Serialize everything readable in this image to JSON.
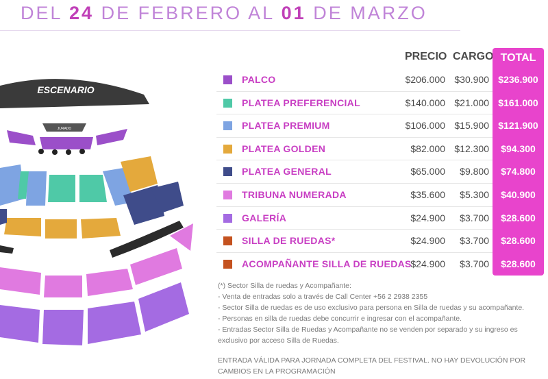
{
  "header": {
    "prefix": "DEL ",
    "day_start": "24",
    "middle": " DE FEBRERO AL ",
    "day_end": "01",
    "suffix": " DE MARZO"
  },
  "map": {
    "stage_label": "ESCENARIO",
    "jurado_label": "JURADO"
  },
  "table": {
    "col_precio": "PRECIO",
    "col_cargo": "CARGO",
    "col_total": "TOTAL",
    "rows": [
      {
        "zone": "PALCO",
        "color": "#9b4fc9",
        "precio": "$206.000",
        "cargo": "$30.900",
        "total": "$236.900"
      },
      {
        "zone": "PLATEA PREFERENCIAL",
        "color": "#4fc9a7",
        "precio": "$140.000",
        "cargo": "$21.000",
        "total": "$161.000"
      },
      {
        "zone": "PLATEA PREMIUM",
        "color": "#7ea4e2",
        "precio": "$106.000",
        "cargo": "$15.900",
        "total": "$121.900"
      },
      {
        "zone": "PLATEA GOLDEN",
        "color": "#e4a93c",
        "precio": "$82.000",
        "cargo": "$12.300",
        "total": "$94.300"
      },
      {
        "zone": "PLATEA GENERAL",
        "color": "#3f4c8a",
        "precio": "$65.000",
        "cargo": "$9.800",
        "total": "$74.800"
      },
      {
        "zone": "TRIBUNA NUMERADA",
        "color": "#e07ae0",
        "precio": "$35.600",
        "cargo": "$5.300",
        "total": "$40.900"
      },
      {
        "zone": "GALERÍA",
        "color": "#a46be2",
        "precio": "$24.900",
        "cargo": "$3.700",
        "total": "$28.600"
      },
      {
        "zone": "SILLA DE RUEDAS*",
        "color": "#c4521f",
        "precio": "$24.900",
        "cargo": "$3.700",
        "total": "$28.600"
      },
      {
        "zone": "ACOMPAÑANTE SILLA DE RUEDAS",
        "color": "#c4521f",
        "precio": "$24.900",
        "cargo": "$3.700",
        "total": "$28.600"
      }
    ]
  },
  "notes": [
    "(*) Sector Silla de ruedas y Acompañante:",
    "- Venta de entradas solo a través de Call Center +56 2 2938 2355",
    "- Sector Silla de ruedas es de uso exclusivo para persona en Silla de ruedas y su acompañante.",
    "- Personas en silla de ruedas debe concurrir e ingresar con el acompañante.",
    "- Entradas Sector Silla de Ruedas y Acompañante no se venden por separado y su ingreso es exclusivo por acceso Silla de Ruedas."
  ],
  "disclaimer": "ENTRADA VÁLIDA PARA JORNADA COMPLETA DEL FESTIVAL. NO HAY DEVOLUCIÓN POR CAMBIOS EN LA PROGRAMACIÓN"
}
